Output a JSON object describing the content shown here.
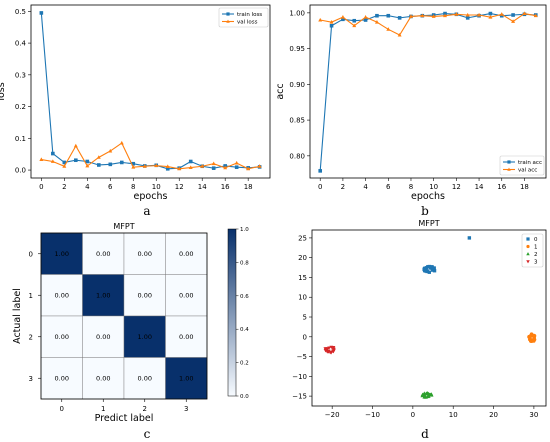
{
  "captions": [
    "a",
    "b",
    "c",
    "d"
  ],
  "chart_data": [
    {
      "type": "line",
      "xlabel": "epochs",
      "ylabel": "loss",
      "xlim": [
        -0.9,
        19.9
      ],
      "ylim": [
        -0.025,
        0.52
      ],
      "xticks": [
        0,
        2,
        4,
        6,
        8,
        10,
        12,
        14,
        16,
        18
      ],
      "yticks": [
        0.0,
        0.1,
        0.2,
        0.3,
        0.4,
        0.5
      ],
      "ytick_labels": [
        "0.0",
        "0.1",
        "0.2",
        "0.3",
        "0.4",
        "0.5"
      ],
      "legend_position": "top-right",
      "x": [
        0,
        1,
        2,
        3,
        4,
        5,
        6,
        7,
        8,
        9,
        10,
        11,
        12,
        13,
        14,
        15,
        16,
        17,
        18,
        19
      ],
      "series": [
        {
          "name": "train loss",
          "color": "#1f77b4",
          "marker": "square",
          "values": [
            0.495,
            0.052,
            0.024,
            0.031,
            0.027,
            0.016,
            0.018,
            0.024,
            0.02,
            0.013,
            0.015,
            0.004,
            0.006,
            0.027,
            0.012,
            0.006,
            0.013,
            0.009,
            0.007,
            0.01
          ]
        },
        {
          "name": "val loss",
          "color": "#ff7f0e",
          "marker": "triangle",
          "values": [
            0.033,
            0.027,
            0.012,
            0.076,
            0.013,
            0.04,
            0.06,
            0.085,
            0.009,
            0.012,
            0.014,
            0.011,
            0.004,
            0.008,
            0.012,
            0.02,
            0.007,
            0.022,
            0.004,
            0.012
          ]
        }
      ]
    },
    {
      "type": "line",
      "xlabel": "epochs",
      "ylabel": "acc",
      "xlim": [
        -0.9,
        19.9
      ],
      "ylim": [
        0.769,
        1.011
      ],
      "xticks": [
        0,
        2,
        4,
        6,
        8,
        10,
        12,
        14,
        16,
        18
      ],
      "yticks": [
        0.8,
        0.85,
        0.9,
        0.95,
        1.0
      ],
      "ytick_labels": [
        "0.80",
        "0.85",
        "0.90",
        "0.95",
        "1.00"
      ],
      "legend_position": "bottom-right",
      "x": [
        0,
        1,
        2,
        3,
        4,
        5,
        6,
        7,
        8,
        9,
        10,
        11,
        12,
        13,
        14,
        15,
        16,
        17,
        18,
        19
      ],
      "series": [
        {
          "name": "train acc",
          "color": "#1f77b4",
          "marker": "square",
          "values": [
            0.779,
            0.982,
            0.991,
            0.989,
            0.99,
            0.996,
            0.996,
            0.993,
            0.995,
            0.996,
            0.997,
            0.999,
            0.998,
            0.993,
            0.996,
            0.999,
            0.996,
            0.997,
            0.998,
            0.997
          ]
        },
        {
          "name": "val acc",
          "color": "#ff7f0e",
          "marker": "triangle",
          "values": [
            0.99,
            0.987,
            0.994,
            0.982,
            0.994,
            0.987,
            0.977,
            0.969,
            0.995,
            0.996,
            0.995,
            0.996,
            0.998,
            0.997,
            0.997,
            0.994,
            0.998,
            0.988,
            0.999,
            0.996
          ]
        }
      ]
    },
    {
      "type": "heatmap",
      "title": "MFPT",
      "xlabel": "Predict label",
      "ylabel": "Actual label",
      "x_categories": [
        "0",
        "1",
        "2",
        "3"
      ],
      "y_categories": [
        "0",
        "1",
        "2",
        "3"
      ],
      "values": [
        [
          1.0,
          0.0,
          0.0,
          0.0
        ],
        [
          0.0,
          1.0,
          0.0,
          0.0
        ],
        [
          0.0,
          0.0,
          1.0,
          0.0
        ],
        [
          0.0,
          0.0,
          0.0,
          1.0
        ]
      ],
      "cell_labels": [
        [
          "1.00",
          "0.00",
          "0.00",
          "0.00"
        ],
        [
          "0.00",
          "1.00",
          "0.00",
          "0.00"
        ],
        [
          "0.00",
          "0.00",
          "1.00",
          "0.00"
        ],
        [
          "0.00",
          "0.00",
          "0.00",
          "1.00"
        ]
      ],
      "colorbar": {
        "min": 0.0,
        "max": 1.0,
        "ticks": [
          "0.0",
          "0.2",
          "0.4",
          "0.6",
          "0.8",
          "1.0"
        ],
        "colormap": "Blues"
      }
    },
    {
      "type": "scatter",
      "title": "MFPT",
      "xlim": [
        -25,
        33
      ],
      "ylim": [
        -17.5,
        27
      ],
      "xticks": [
        -20,
        -10,
        0,
        10,
        20,
        30
      ],
      "xtick_labels": [
        "−20",
        "−10",
        "0",
        "10",
        "20",
        "30"
      ],
      "yticks": [
        -15,
        -10,
        -5,
        0,
        5,
        10,
        15,
        20,
        25
      ],
      "ytick_labels": [
        "−15",
        "−10",
        "−5",
        "0",
        "5",
        "10",
        "15",
        "20",
        "25"
      ],
      "legend_position": "top-right",
      "series": [
        {
          "name": "0",
          "color": "#1f77b4",
          "marker": "square",
          "center": [
            4,
            17
          ],
          "spread": [
            1.5,
            0.8
          ],
          "outlier": [
            14,
            25
          ]
        },
        {
          "name": "1",
          "color": "#ff7f0e",
          "marker": "circle",
          "center": [
            29.5,
            -0.3
          ],
          "spread": [
            0.8,
            1.0
          ]
        },
        {
          "name": "2",
          "color": "#2ca02c",
          "marker": "triangle-up",
          "center": [
            3.5,
            -14.8
          ],
          "spread": [
            1.3,
            0.6
          ]
        },
        {
          "name": "3",
          "color": "#d62728",
          "marker": "triangle-down",
          "center": [
            -20.5,
            -3.2
          ],
          "spread": [
            1.2,
            0.8
          ]
        }
      ]
    }
  ]
}
